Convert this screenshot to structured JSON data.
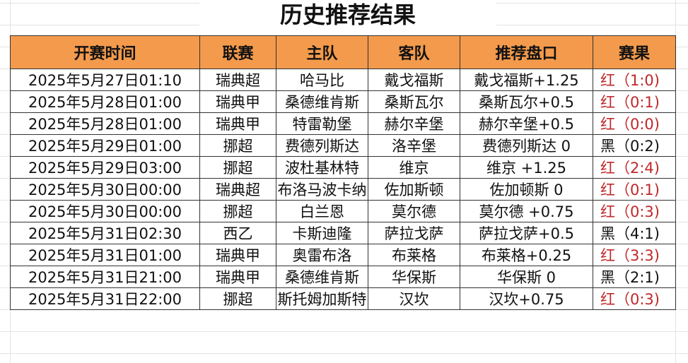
{
  "title": "历史推荐结果",
  "headers": [
    "开赛时间",
    "联赛",
    "主队",
    "客队",
    "推荐盘口",
    "赛果"
  ],
  "colors": {
    "header_bg": "#f39a4c",
    "red": "#c0282a",
    "black": "#111111"
  },
  "rows": [
    {
      "time": "2025年5月27日01:10",
      "league": "瑞典超",
      "home": "哈马比",
      "away": "戴戈福斯",
      "pick": "戴戈福斯+1.25",
      "result": "红（1:0)",
      "win": true
    },
    {
      "time": "2025年5月28日01:00",
      "league": "瑞典甲",
      "home": "桑德维肯斯",
      "away": "桑斯瓦尔",
      "pick": "桑斯瓦尔+0.5",
      "result": "红（0:1)",
      "win": true
    },
    {
      "time": "2025年5月28日01:00",
      "league": "瑞典甲",
      "home": "特雷勒堡",
      "away": "赫尔辛堡",
      "pick": "赫尔辛堡+0.5",
      "result": "红（0:0)",
      "win": true
    },
    {
      "time": "2025年5月29日01:00",
      "league": "挪超",
      "home": "费德列斯达",
      "away": "洛辛堡",
      "pick": "费德列斯达 0",
      "result": "黑（0:2)",
      "win": false
    },
    {
      "time": "2025年5月29日03:00",
      "league": "挪超",
      "home": "波杜基林特",
      "away": "维京",
      "pick": "维京 +1.25",
      "result": "红（2:4)",
      "win": true
    },
    {
      "time": "2025年5月30日00:00",
      "league": "瑞典超",
      "home": "布洛马波卡纳",
      "away": "佐加斯顿",
      "pick": "佐加顿斯 0",
      "result": "红（0:1)",
      "win": true
    },
    {
      "time": "2025年5月30日00:00",
      "league": "挪超",
      "home": "白兰恩",
      "away": "莫尔德",
      "pick": "莫尔德 +0.75",
      "result": "红（0:3)",
      "win": true
    },
    {
      "time": "2025年5月31日02:30",
      "league": "西乙",
      "home": "卡斯迪隆",
      "away": "萨拉戈萨",
      "pick": "萨拉戈萨+0.5",
      "result": "黑（4:1)",
      "win": false
    },
    {
      "time": "2025年5月31日01:00",
      "league": "瑞典甲",
      "home": "奥雷布洛",
      "away": "布莱格",
      "pick": "布莱格+0.25",
      "result": "红（3:3)",
      "win": true
    },
    {
      "time": "2025年5月31日21:00",
      "league": "瑞典甲",
      "home": "桑德维肯斯",
      "away": "华保斯",
      "pick": "华保斯 0",
      "result": "黑（2:1)",
      "win": false
    },
    {
      "time": "2025年5月31日22:00",
      "league": "挪超",
      "home": "斯托姆加斯特",
      "away": "汉坎",
      "pick": "汉坎+0.75",
      "result": "红（0:3)",
      "win": true
    }
  ]
}
